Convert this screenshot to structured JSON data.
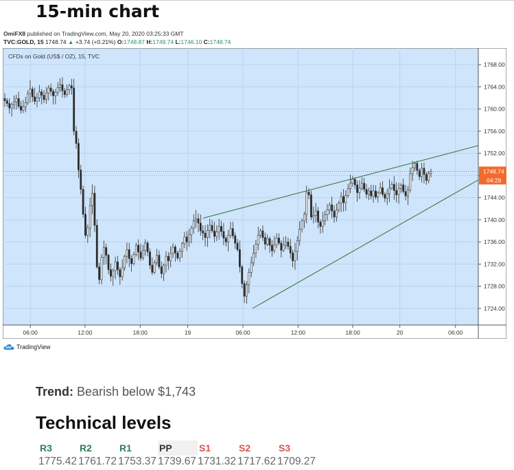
{
  "header": {
    "title": "15-min chart"
  },
  "publisher": {
    "author": "OmiFX8",
    "text": " published on TradingView.com, May 20, 2020 03:25:33 GMT"
  },
  "ohlc": {
    "symbol": "TVC:GOLD, 15",
    "last": "1748.74",
    "change": "+3.74 (+0.21%)",
    "o_label": "O:",
    "o": "1748.87",
    "h_label": "H:",
    "h": "1749.74",
    "l_label": "L:",
    "l": "1746.10",
    "c_label": "C:",
    "c": "1748.74"
  },
  "chart_data": {
    "type": "candlestick",
    "legend": "CFDs on Gold (US$ / OZ), 15, TVC",
    "y_ticks": [
      "1724.00",
      "1728.00",
      "1732.00",
      "1736.00",
      "1740.00",
      "1744.00",
      "1748.00",
      "1752.00",
      "1756.00",
      "1760.00",
      "1764.00",
      "1768.00"
    ],
    "y_range": [
      1721.0,
      1771.0
    ],
    "x_ticks": [
      "06:00",
      "12:00",
      "18:00",
      "19",
      "06:00",
      "12:00",
      "18:00",
      "20",
      "06:00"
    ],
    "last_price_label": "1748.74",
    "countdown_label": "04:29",
    "colors": {
      "background": "#cfe5fb",
      "grid": "#b8d4f0",
      "candle": "#2b2b2b",
      "trendline": "#3f7a45",
      "price_line": "#e8502a",
      "price_tag": "#f26a2e"
    },
    "price_path": [
      1761.5,
      1761.0,
      1760.2,
      1760.8,
      1761.3,
      1761.9,
      1760.5,
      1759.8,
      1760.4,
      1761.1,
      1762.8,
      1763.6,
      1762.2,
      1761.4,
      1762.0,
      1763.1,
      1762.5,
      1761.7,
      1762.9,
      1763.8,
      1763.2,
      1762.4,
      1763.0,
      1763.9,
      1764.4,
      1763.3,
      1762.6,
      1763.5,
      1764.2,
      1763.8,
      1756.0,
      1753.8,
      1749.0,
      1745.5,
      1741.0,
      1737.2,
      1738.5,
      1742.5,
      1744.8,
      1739.0,
      1731.5,
      1729.2,
      1733.2,
      1735.0,
      1733.6,
      1731.0,
      1729.8,
      1730.8,
      1732.4,
      1731.0,
      1729.7,
      1731.3,
      1733.4,
      1734.6,
      1733.0,
      1732.1,
      1733.7,
      1735.4,
      1734.2,
      1733.1,
      1734.5,
      1735.8,
      1734.2,
      1731.8,
      1730.5,
      1732.2,
      1733.6,
      1731.5,
      1730.3,
      1731.8,
      1733.4,
      1732.6,
      1733.9,
      1735.1,
      1734.0,
      1733.1,
      1734.3,
      1735.7,
      1736.9,
      1736.0,
      1737.3,
      1738.5,
      1739.8,
      1740.2,
      1739.4,
      1738.0,
      1737.6,
      1736.8,
      1738.1,
      1739.0,
      1738.0,
      1737.0,
      1737.8,
      1738.8,
      1737.9,
      1736.7,
      1736.0,
      1737.2,
      1738.4,
      1737.1,
      1735.8,
      1734.6,
      1731.5,
      1728.5,
      1726.2,
      1728.3,
      1730.5,
      1732.2,
      1734.0,
      1735.6,
      1737.2,
      1738.0,
      1736.8,
      1735.6,
      1736.6,
      1735.4,
      1734.4,
      1735.5,
      1736.7,
      1735.8,
      1734.5,
      1735.4,
      1736.0,
      1735.2,
      1734.0,
      1732.6,
      1734.3,
      1736.2,
      1738.3,
      1739.8,
      1741.0,
      1745.0,
      1744.5,
      1740.5,
      1740.8,
      1741.6,
      1739.6,
      1738.8,
      1739.8,
      1740.9,
      1741.8,
      1742.7,
      1741.6,
      1740.5,
      1741.8,
      1743.0,
      1744.2,
      1743.1,
      1744.4,
      1745.6,
      1746.6,
      1747.3,
      1746.3,
      1744.9,
      1745.7,
      1746.6,
      1745.5,
      1744.6,
      1745.2,
      1744.3,
      1745.2,
      1744.1,
      1744.9,
      1745.8,
      1744.6,
      1743.9,
      1744.7,
      1745.7,
      1746.4,
      1745.3,
      1744.5,
      1745.6,
      1746.3,
      1745.1,
      1744.3,
      1745.4,
      1748.3,
      1749.4,
      1750.2,
      1748.9,
      1747.8,
      1749.3,
      1748.2,
      1747.1,
      1748.4,
      1748.7
    ]
  },
  "trendlines": {
    "upper": [
      [
        0.0,
        1740.3
      ],
      [
        1.0,
        1753.4
      ]
    ],
    "lower": [
      [
        0.0,
        1724.0
      ],
      [
        1.0,
        1747.2
      ]
    ]
  },
  "branding": {
    "name": "TradingView"
  },
  "trend": {
    "label": "Trend:",
    "text": " Bearish below $1,743"
  },
  "levels": {
    "title": "Technical levels",
    "headers": [
      "R3",
      "R2",
      "R1",
      "PP",
      "S1",
      "S2",
      "S3"
    ],
    "values": [
      "1775.42",
      "1761.72",
      "1753.37",
      "1739.67",
      "1731.32",
      "1717.62",
      "1709.27"
    ]
  }
}
